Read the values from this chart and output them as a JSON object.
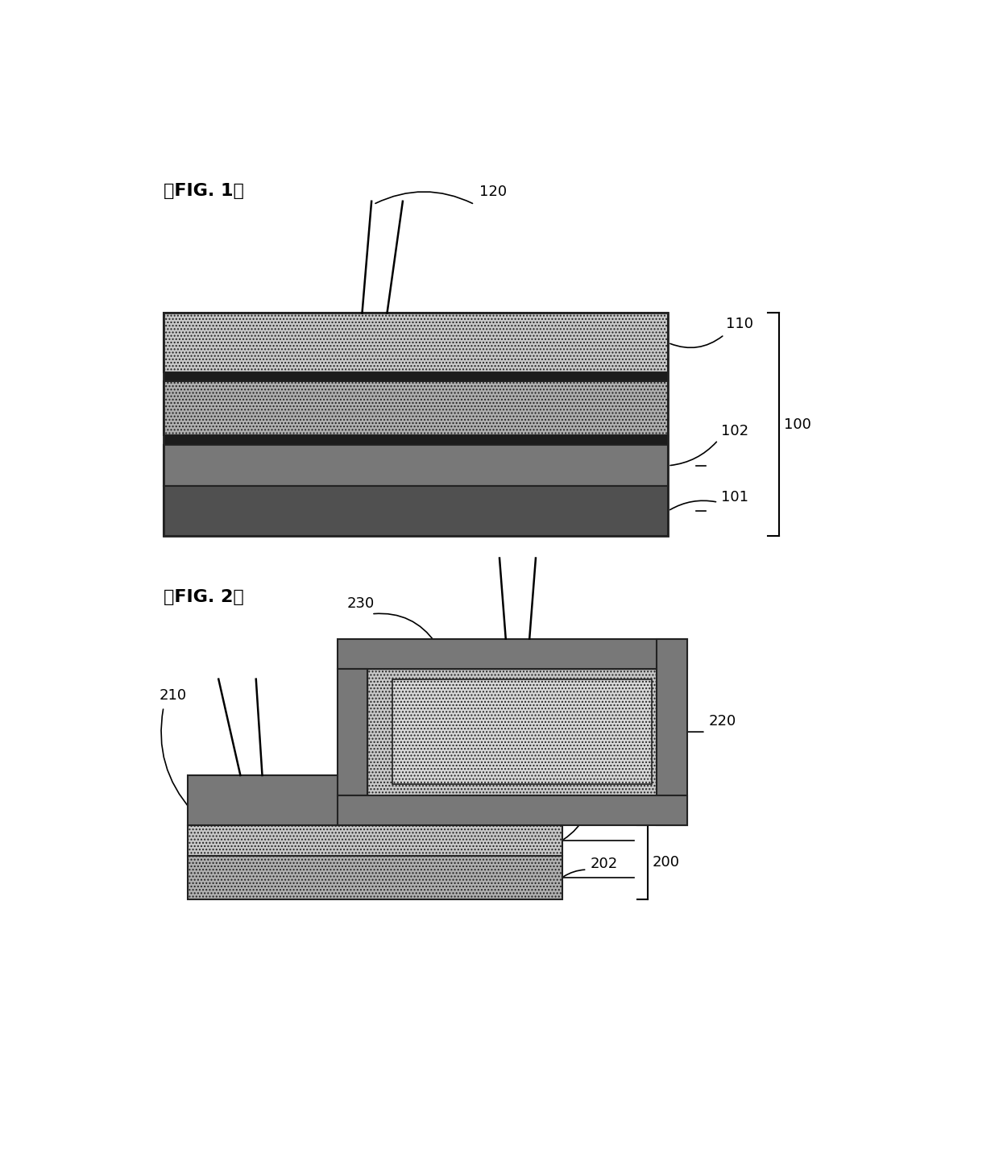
{
  "fig_width": 12.4,
  "fig_height": 14.27,
  "dpi": 100,
  "bg_color": "#ffffff",
  "fig1_label": "』FIG. 1』",
  "fig2_label": "』FIG. 2』",
  "c_light": "#c8c8c8",
  "c_mid": "#b0b0b0",
  "c_dark": "#787878",
  "c_darker": "#505050",
  "c_black": "#111111",
  "c_border": "#222222",
  "c_white": "#ffffff"
}
